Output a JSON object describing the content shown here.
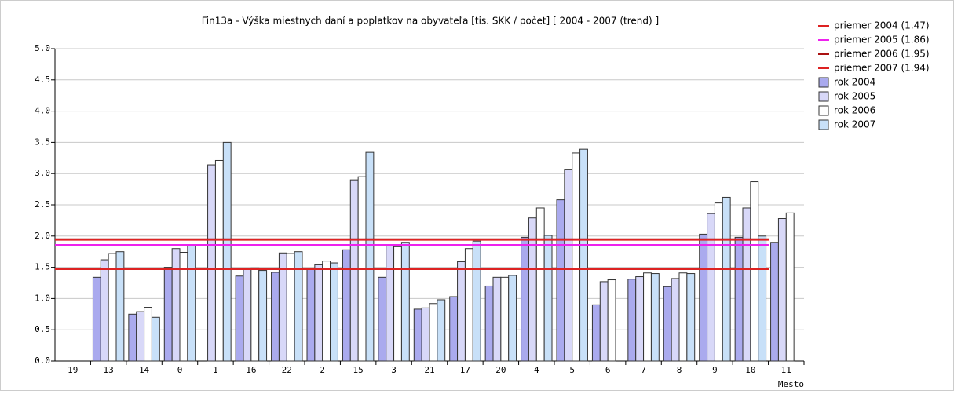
{
  "chart_data": {
    "type": "bar",
    "title": "Fin13a - Výška miestnych daní a poplatkov na obyvateľa [tis. SKK / počet]  [ 2004 - 2007 (trend) ]",
    "x_label": "Mesto",
    "categories": [
      "19",
      "13",
      "14",
      "0",
      "1",
      "16",
      "22",
      "2",
      "15",
      "3",
      "21",
      "17",
      "20",
      "4",
      "5",
      "6",
      "7",
      "8",
      "9",
      "10",
      "11"
    ],
    "series": [
      {
        "name": "rok 2004",
        "color": "#aaaaee",
        "values": [
          null,
          1.34,
          0.75,
          1.5,
          null,
          1.36,
          1.42,
          1.48,
          1.78,
          1.34,
          0.83,
          1.03,
          1.2,
          1.98,
          2.58,
          0.9,
          1.31,
          1.19,
          2.03,
          1.98,
          1.9
        ]
      },
      {
        "name": "rok 2005",
        "color": "#d8d8f8",
        "values": [
          null,
          1.62,
          0.79,
          1.8,
          3.14,
          1.48,
          1.73,
          1.54,
          2.9,
          1.85,
          0.85,
          1.59,
          1.34,
          2.29,
          3.07,
          1.27,
          1.35,
          1.32,
          2.36,
          2.45,
          2.28
        ]
      },
      {
        "name": "rok 2006",
        "color": "#ffffff",
        "values": [
          null,
          1.72,
          0.86,
          1.74,
          3.21,
          1.49,
          1.72,
          1.6,
          2.95,
          1.83,
          0.92,
          1.8,
          1.34,
          2.45,
          3.33,
          1.3,
          1.41,
          1.41,
          2.53,
          2.87,
          2.37
        ]
      },
      {
        "name": "rok 2007",
        "color": "#c8e0f8",
        "values": [
          null,
          1.75,
          0.7,
          1.85,
          3.5,
          1.45,
          1.75,
          1.57,
          3.34,
          1.9,
          0.98,
          1.92,
          1.37,
          2.01,
          3.39,
          null,
          1.4,
          1.4,
          2.62,
          2.0,
          null
        ]
      }
    ],
    "reference_lines": [
      {
        "name": "priemer 2004 (1.47)",
        "value": 1.47,
        "color": "#dd2222"
      },
      {
        "name": "priemer 2005 (1.86)",
        "value": 1.86,
        "color": "#ee22ee"
      },
      {
        "name": "priemer 2006 (1.95)",
        "value": 1.95,
        "color": "#aa1111"
      },
      {
        "name": "priemer 2007 (1.94)",
        "value": 1.94,
        "color": "#dd2222"
      }
    ],
    "ylim": [
      0,
      5
    ],
    "yticks": [
      {
        "value": 0,
        "label": "0.0"
      },
      0.5,
      {
        "value": 1,
        "label": "1.0"
      },
      1.5,
      {
        "value": 2,
        "label": "2.0"
      },
      2.5,
      {
        "value": 3,
        "label": "3.0"
      },
      3.5,
      {
        "value": 4,
        "label": "4.0"
      },
      4.5,
      {
        "value": 5,
        "label": "5.0"
      }
    ],
    "grid": true
  }
}
